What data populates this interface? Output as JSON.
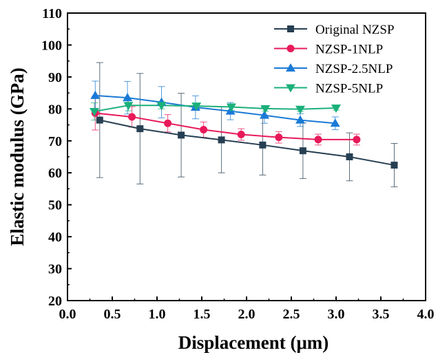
{
  "chart_data": {
    "type": "line",
    "title": "",
    "xlabel": "Displacement (μm)",
    "ylabel": "Elastic modulus (GPa)",
    "xlim": [
      0.0,
      4.0
    ],
    "ylim": [
      20,
      110
    ],
    "xticks": [
      "0.0",
      "0.5",
      "1.0",
      "1.5",
      "2.0",
      "2.5",
      "3.0",
      "3.5",
      "4.0"
    ],
    "yticks": [
      "20",
      "30",
      "40",
      "50",
      "60",
      "70",
      "80",
      "90",
      "100",
      "110"
    ],
    "grid": false,
    "legend_position": "top-right",
    "series": [
      {
        "name": "Original NZSP",
        "color": "#263f52",
        "marker": "square",
        "x": [
          0.36,
          0.81,
          1.27,
          1.72,
          2.18,
          2.63,
          3.15,
          3.65
        ],
        "y": [
          76.5,
          73.8,
          71.8,
          70.3,
          68.7,
          66.9,
          65.0,
          62.4
        ],
        "err": [
          18.0,
          17.3,
          13.1,
          10.3,
          9.4,
          8.7,
          7.5,
          6.8
        ]
      },
      {
        "name": "NZSP-1NLP",
        "color": "#e8195a",
        "marker": "circle",
        "x": [
          0.31,
          0.72,
          1.12,
          1.52,
          1.94,
          2.36,
          2.8,
          3.23
        ],
        "y": [
          78.7,
          77.5,
          75.5,
          73.5,
          72.0,
          71.1,
          70.4,
          70.4
        ],
        "err": [
          5.3,
          3.2,
          2.7,
          2.4,
          1.8,
          1.8,
          1.7,
          1.7
        ]
      },
      {
        "name": "NZSP-2.5NLP",
        "color": "#1a7ad6",
        "marker": "triangle-up",
        "x": [
          0.31,
          0.67,
          1.05,
          1.43,
          1.82,
          2.2,
          2.6,
          2.99
        ],
        "y": [
          84.2,
          83.5,
          82.1,
          80.5,
          79.3,
          78.0,
          76.5,
          75.5
        ],
        "err": [
          4.5,
          5.1,
          4.9,
          3.6,
          2.7,
          2.5,
          2.0,
          2.0
        ]
      },
      {
        "name": "NZSP-5NLP",
        "color": "#1bb07a",
        "marker": "triangle-down",
        "x": [
          0.3,
          0.68,
          1.05,
          1.44,
          1.83,
          2.21,
          2.6,
          3.0
        ],
        "y": [
          79.2,
          81.1,
          81.1,
          80.9,
          80.6,
          80.1,
          79.9,
          80.3
        ],
        "err": [
          2.7,
          1.7,
          1.1,
          0.9,
          1.0,
          0.8,
          0.7,
          0.7
        ]
      }
    ]
  }
}
